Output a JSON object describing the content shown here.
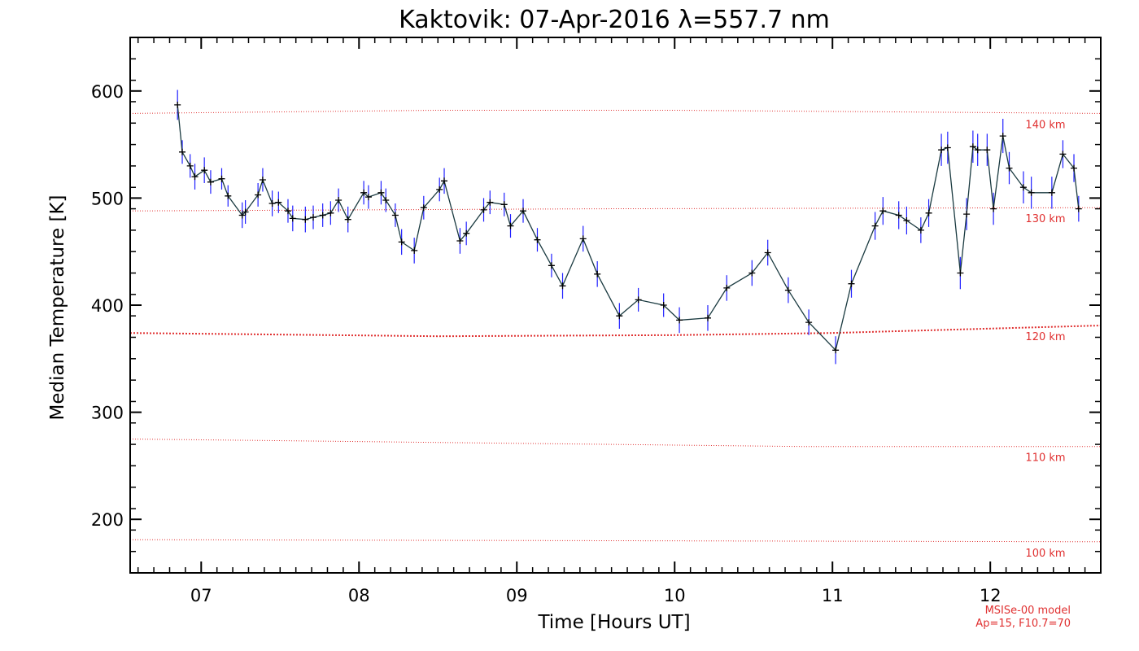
{
  "chart_data": {
    "type": "line",
    "title": "Kaktovik: 07-Apr-2016 λ=557.7 nm",
    "xlabel": "Time [Hours UT]",
    "ylabel": "Median Temperature [K]",
    "xlim": [
      6.55,
      12.7
    ],
    "ylim": [
      150,
      650
    ],
    "x_ticks": [
      7,
      8,
      9,
      10,
      11,
      12
    ],
    "x_tick_labels": [
      "07",
      "08",
      "09",
      "10",
      "11",
      "12"
    ],
    "y_ticks": [
      200,
      300,
      400,
      500,
      600
    ],
    "y_tick_labels": [
      "200",
      "300",
      "400",
      "500",
      "600"
    ],
    "grid": false,
    "series": [
      {
        "color": "#000000",
        "errorbar_color": "#2020ff",
        "marker": "plus",
        "points": [
          [
            6.85,
            587,
            14
          ],
          [
            6.88,
            543,
            11
          ],
          [
            6.93,
            530,
            11
          ],
          [
            6.96,
            520,
            12
          ],
          [
            7.02,
            526,
            12
          ],
          [
            7.06,
            515,
            11
          ],
          [
            7.13,
            518,
            10
          ],
          [
            7.17,
            502,
            10
          ],
          [
            7.26,
            484,
            12
          ],
          [
            7.28,
            487,
            11
          ],
          [
            7.36,
            503,
            11
          ],
          [
            7.39,
            517,
            11
          ],
          [
            7.45,
            495,
            12
          ],
          [
            7.49,
            496,
            10
          ],
          [
            7.55,
            488,
            11
          ],
          [
            7.58,
            481,
            12
          ],
          [
            7.66,
            480,
            12
          ],
          [
            7.71,
            482,
            11
          ],
          [
            7.77,
            484,
            11
          ],
          [
            7.82,
            486,
            11
          ],
          [
            7.87,
            498,
            11
          ],
          [
            7.93,
            480,
            12
          ],
          [
            8.03,
            505,
            11
          ],
          [
            8.06,
            501,
            11
          ],
          [
            8.14,
            505,
            11
          ],
          [
            8.17,
            498,
            11
          ],
          [
            8.23,
            484,
            11
          ],
          [
            8.27,
            459,
            12
          ],
          [
            8.35,
            451,
            12
          ],
          [
            8.41,
            491,
            11
          ],
          [
            8.51,
            508,
            11
          ],
          [
            8.54,
            516,
            12
          ],
          [
            8.64,
            460,
            12
          ],
          [
            8.68,
            467,
            11
          ],
          [
            8.79,
            489,
            11
          ],
          [
            8.83,
            496,
            11
          ],
          [
            8.92,
            494,
            11
          ],
          [
            8.96,
            474,
            11
          ],
          [
            9.04,
            488,
            11
          ],
          [
            9.13,
            461,
            11
          ],
          [
            9.22,
            437,
            11
          ],
          [
            9.29,
            418,
            12
          ],
          [
            9.42,
            462,
            12
          ],
          [
            9.51,
            429,
            12
          ],
          [
            9.65,
            390,
            12
          ],
          [
            9.77,
            405,
            11
          ],
          [
            9.93,
            400,
            11
          ],
          [
            10.03,
            386,
            12
          ],
          [
            10.21,
            388,
            12
          ],
          [
            10.33,
            416,
            12
          ],
          [
            10.49,
            430,
            12
          ],
          [
            10.59,
            449,
            12
          ],
          [
            10.72,
            414,
            12
          ],
          [
            10.85,
            384,
            12
          ],
          [
            11.02,
            358,
            13
          ],
          [
            11.12,
            420,
            13
          ],
          [
            11.27,
            474,
            13
          ],
          [
            11.32,
            488,
            13
          ],
          [
            11.42,
            484,
            13
          ],
          [
            11.47,
            479,
            13
          ],
          [
            11.56,
            470,
            12
          ],
          [
            11.61,
            486,
            13
          ],
          [
            11.69,
            545,
            15
          ],
          [
            11.73,
            547,
            15
          ],
          [
            11.81,
            430,
            15
          ],
          [
            11.85,
            485,
            15
          ],
          [
            11.89,
            548,
            15
          ],
          [
            11.92,
            545,
            15
          ],
          [
            11.98,
            545,
            15
          ],
          [
            12.02,
            490,
            15
          ],
          [
            12.08,
            558,
            16
          ],
          [
            12.12,
            528,
            15
          ],
          [
            12.21,
            510,
            15
          ],
          [
            12.26,
            505,
            15
          ],
          [
            12.39,
            505,
            15
          ],
          [
            12.46,
            541,
            13
          ],
          [
            12.53,
            528,
            13
          ],
          [
            12.56,
            490,
            12
          ]
        ]
      }
    ],
    "reference_lines": [
      {
        "label": "100 km",
        "color": "#e03030",
        "style": "dotted",
        "x": [
          6.55,
          12.7
        ],
        "y": [
          181,
          179
        ]
      },
      {
        "label": "110 km",
        "color": "#e03030",
        "style": "dotted",
        "x": [
          6.55,
          9.0,
          10.8,
          12.7
        ],
        "y": [
          275,
          271,
          268,
          268
        ]
      },
      {
        "label": "120 km",
        "color": "#e03030",
        "style": "dotted-thick",
        "x": [
          6.55,
          8.5,
          10.0,
          11.0,
          12.7
        ],
        "y": [
          374,
          371,
          372,
          374,
          381
        ]
      },
      {
        "label": "130 km",
        "color": "#e03030",
        "style": "dotted",
        "x": [
          6.55,
          9.5,
          12.7
        ],
        "y": [
          488,
          490,
          491
        ]
      },
      {
        "label": "140 km",
        "color": "#e03030",
        "style": "dotted",
        "x": [
          6.55,
          8.5,
          10.0,
          12.7
        ],
        "y": [
          579,
          582,
          582,
          579
        ]
      }
    ],
    "annotations": [
      "MSISe-00 model",
      "Ap=15, F10.7=70"
    ]
  }
}
